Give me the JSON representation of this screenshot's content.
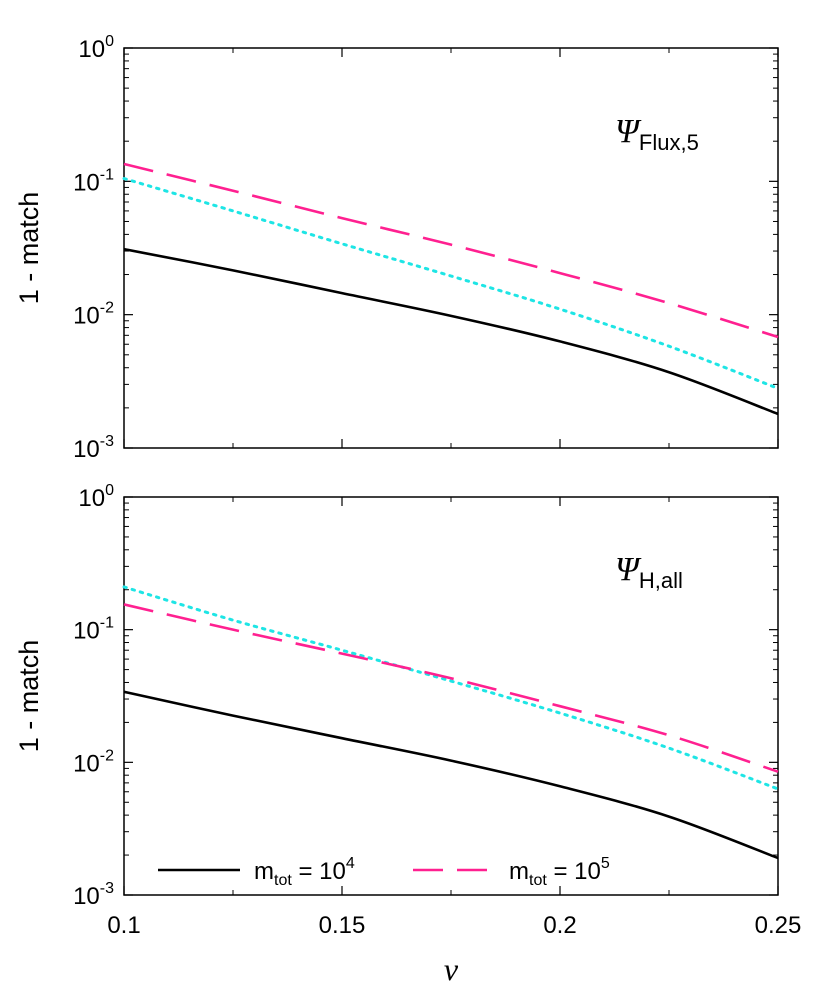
{
  "chart_data": [
    {
      "type": "line",
      "panel": "top",
      "title": "Ψ",
      "title_sub": "Flux,5",
      "xlabel": "",
      "ylabel": "1 - match",
      "xlim": [
        0.1,
        0.25
      ],
      "ylim": [
        0.001,
        1
      ],
      "y_scale": "log",
      "grid": false,
      "x_ticks": [
        0.1,
        0.15,
        0.2,
        0.25
      ],
      "x_tick_labels": [],
      "y_ticks": [
        {
          "base": "10",
          "exp": "-3"
        },
        {
          "base": "10",
          "exp": "-2"
        },
        {
          "base": "10",
          "exp": "-1"
        },
        {
          "base": "10",
          "exp": "0"
        }
      ],
      "x": [
        0.1,
        0.125,
        0.15,
        0.175,
        0.2,
        0.225,
        0.25
      ],
      "series": [
        {
          "style": "solid",
          "color": "#000000",
          "values": [
            0.031,
            0.0215,
            0.0145,
            0.0098,
            0.0063,
            0.0037,
            0.0018
          ]
        },
        {
          "style": "dotted",
          "color": "#1ee5e5",
          "values": [
            0.105,
            0.06,
            0.034,
            0.0195,
            0.011,
            0.0058,
            0.0028
          ]
        },
        {
          "style": "dashed",
          "color": "#ff2090",
          "values": [
            0.135,
            0.085,
            0.053,
            0.0335,
            0.0205,
            0.0122,
            0.0068
          ]
        }
      ]
    },
    {
      "type": "line",
      "panel": "bottom",
      "title": "Ψ",
      "title_sub": "H,all",
      "xlabel": "ν",
      "ylabel": "1 - match",
      "xlim": [
        0.1,
        0.25
      ],
      "ylim": [
        0.001,
        1
      ],
      "y_scale": "log",
      "grid": false,
      "x_ticks": [
        0.1,
        0.15,
        0.2,
        0.25
      ],
      "x_tick_labels": [
        "0.1",
        "0.15",
        "0.2",
        "0.25"
      ],
      "y_ticks": [
        {
          "base": "10",
          "exp": "-3"
        },
        {
          "base": "10",
          "exp": "-2"
        },
        {
          "base": "10",
          "exp": "-1"
        },
        {
          "base": "10",
          "exp": "0"
        }
      ],
      "x": [
        0.1,
        0.125,
        0.15,
        0.175,
        0.2,
        0.225,
        0.25
      ],
      "series": [
        {
          "style": "solid",
          "color": "#000000",
          "values": [
            0.034,
            0.0225,
            0.0152,
            0.0103,
            0.0066,
            0.0039,
            0.0019
          ]
        },
        {
          "style": "dotted",
          "color": "#1ee5e5",
          "values": [
            0.21,
            0.118,
            0.07,
            0.041,
            0.0235,
            0.0128,
            0.0063
          ]
        },
        {
          "style": "dashed",
          "color": "#ff2090",
          "values": [
            0.155,
            0.1,
            0.066,
            0.043,
            0.0265,
            0.016,
            0.0085
          ]
        }
      ],
      "legend": {
        "placement": "bottom",
        "entries": [
          {
            "style": "solid",
            "color": "#000000",
            "base": "m",
            "sub": "tot",
            "mid": " = 10",
            "sup": "4"
          },
          {
            "style": "dashed",
            "color": "#ff2090",
            "base": "m",
            "sub": "tot",
            "mid": " = 10",
            "sup": "5"
          }
        ]
      }
    }
  ]
}
